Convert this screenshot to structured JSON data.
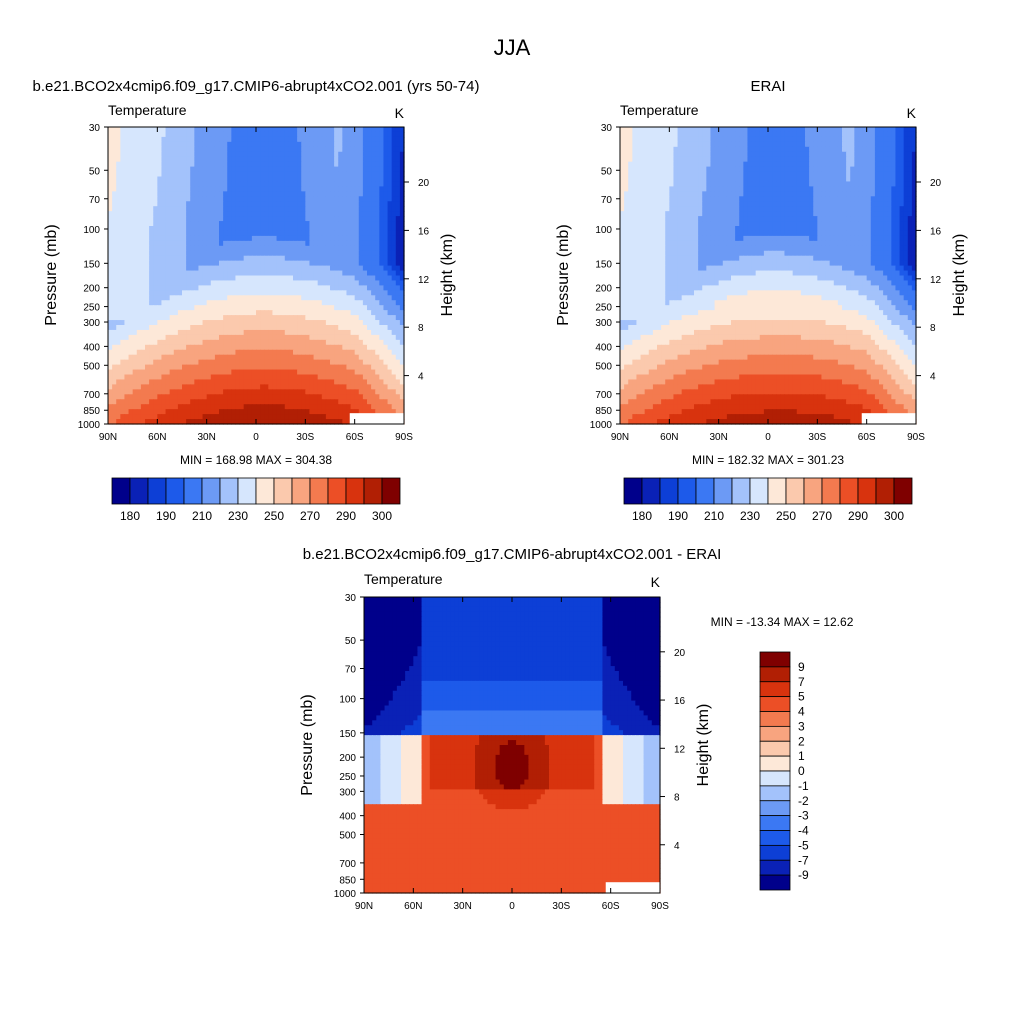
{
  "title": "JJA",
  "colors": {
    "abs_levels": [
      "#00008b",
      "#0a21b6",
      "#0d3fd6",
      "#1d5aea",
      "#3b78f3",
      "#6c9af5",
      "#a3c2fb",
      "#d6e6fd",
      "#fde8d8",
      "#fbc9ad",
      "#f8a47f",
      "#f37a4f",
      "#ec4f26",
      "#d8330e",
      "#b11f04",
      "#7f0000"
    ],
    "diff_levels": [
      "#00008b",
      "#0a21b6",
      "#0d3fd6",
      "#1d5aea",
      "#3b78f3",
      "#6c9af5",
      "#a3c2fb",
      "#d6e6fd",
      "#fde8d8",
      "#fbc9ad",
      "#f8a47f",
      "#f37a4f",
      "#ec4f26",
      "#d8330e",
      "#b11f04",
      "#7f0000"
    ]
  },
  "panels": {
    "model": {
      "title": "b.e21.BCO2x4cmip6.f09_g17.CMIP6-abrupt4xCO2.001 (yrs 50-74)",
      "left_label": "Temperature",
      "right_label": "K",
      "stats": "MIN = 168.98  MAX = 304.38",
      "ylabel": "Pressure (mb)",
      "ylabel2": "Height (km)",
      "colorbar_labels": [
        "180",
        "190",
        "210",
        "230",
        "250",
        "270",
        "290",
        "300"
      ]
    },
    "obs": {
      "title": "ERAI",
      "left_label": "Temperature",
      "right_label": "K",
      "stats": "MIN = 182.32  MAX = 301.23",
      "ylabel": "Pressure (mb)",
      "ylabel2": "Height (km)",
      "colorbar_labels": [
        "180",
        "190",
        "210",
        "230",
        "250",
        "270",
        "290",
        "300"
      ]
    },
    "diff": {
      "title": "b.e21.BCO2x4cmip6.f09_g17.CMIP6-abrupt4xCO2.001 - ERAI",
      "left_label": "Temperature",
      "right_label": "K",
      "stats": "MIN = -13.34  MAX =  12.62",
      "ylabel": "Pressure (mb)",
      "ylabel2": "Height (km)",
      "colorbar_labels": [
        "9",
        "7",
        "5",
        "4",
        "3",
        "2",
        "1",
        "0",
        "-1",
        "-2",
        "-3",
        "-4",
        "-5",
        "-7",
        "-9"
      ]
    }
  },
  "chart_data": [
    {
      "type": "heatmap",
      "title": "b.e21.BCO2x4cmip6.f09_g17.CMIP6-abrupt4xCO2.001 (yrs 50-74)",
      "variable": "Temperature",
      "units": "K",
      "x_ticks": [
        "90N",
        "60N",
        "30N",
        "0",
        "30S",
        "60S",
        "90S"
      ],
      "y_ticks": [
        30,
        50,
        70,
        100,
        150,
        200,
        250,
        300,
        400,
        500,
        700,
        850,
        1000
      ],
      "y2_ticks": [
        20,
        16,
        12,
        8,
        4
      ],
      "ylabel": "Pressure (mb)",
      "ylabel2": "Height (km)",
      "ylim": [
        1000,
        30
      ],
      "y_scale": "log",
      "min": 168.98,
      "max": 304.38
    },
    {
      "type": "heatmap",
      "title": "ERAI",
      "variable": "Temperature",
      "units": "K",
      "x_ticks": [
        "90N",
        "60N",
        "30N",
        "0",
        "30S",
        "60S",
        "90S"
      ],
      "y_ticks": [
        30,
        50,
        70,
        100,
        150,
        200,
        250,
        300,
        400,
        500,
        700,
        850,
        1000
      ],
      "y2_ticks": [
        20,
        16,
        12,
        8,
        4
      ],
      "ylabel": "Pressure (mb)",
      "ylabel2": "Height (km)",
      "ylim": [
        1000,
        30
      ],
      "y_scale": "log",
      "min": 182.32,
      "max": 301.23
    },
    {
      "type": "heatmap",
      "title": "b.e21.BCO2x4cmip6.f09_g17.CMIP6-abrupt4xCO2.001 - ERAI",
      "variable": "Temperature",
      "units": "K",
      "x_ticks": [
        "90N",
        "60N",
        "30N",
        "0",
        "30S",
        "60S",
        "90S"
      ],
      "y_ticks": [
        30,
        50,
        70,
        100,
        150,
        200,
        250,
        300,
        400,
        500,
        700,
        850,
        1000
      ],
      "y2_ticks": [
        20,
        16,
        12,
        8,
        4
      ],
      "ylabel": "Pressure (mb)",
      "ylabel2": "Height (km)",
      "ylim": [
        1000,
        30
      ],
      "y_scale": "log",
      "min": -13.34,
      "max": 12.62
    }
  ]
}
